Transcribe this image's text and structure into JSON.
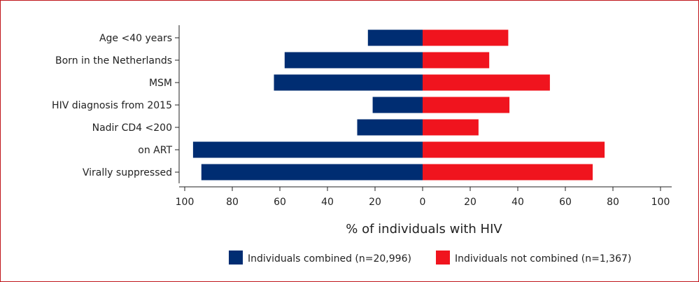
{
  "chart_data": {
    "type": "bar",
    "orientation": "horizontal-diverging",
    "categories": [
      "Age <40 years",
      "Born in the Netherlands",
      "MSM",
      "HIV diagnosis from 2015",
      "Nadir CD4 <200",
      "on ART",
      "Virally suppressed"
    ],
    "series": [
      {
        "name": "Individuals combined (n=20,996)",
        "side": "left",
        "color": "#002d72",
        "values": [
          23,
          58,
          62.5,
          21,
          27.5,
          96.5,
          93
        ]
      },
      {
        "name": "Individuals not combined (n=1,367)",
        "side": "right",
        "color": "#f0141e",
        "values": [
          36,
          28,
          53.5,
          36.5,
          23.5,
          76.5,
          71.5
        ]
      }
    ],
    "xlabel": "% of individuals with HIV",
    "xlim": [
      -100,
      100
    ],
    "xticks": [
      -100,
      -80,
      -60,
      -40,
      -20,
      0,
      20,
      40,
      60,
      80,
      100
    ],
    "xtick_labels": [
      "100",
      "80",
      "60",
      "40",
      "20",
      "0",
      "20",
      "40",
      "60",
      "80",
      "100"
    ],
    "grid": false,
    "legend_position": "bottom",
    "frame_color": "#c0151a"
  }
}
